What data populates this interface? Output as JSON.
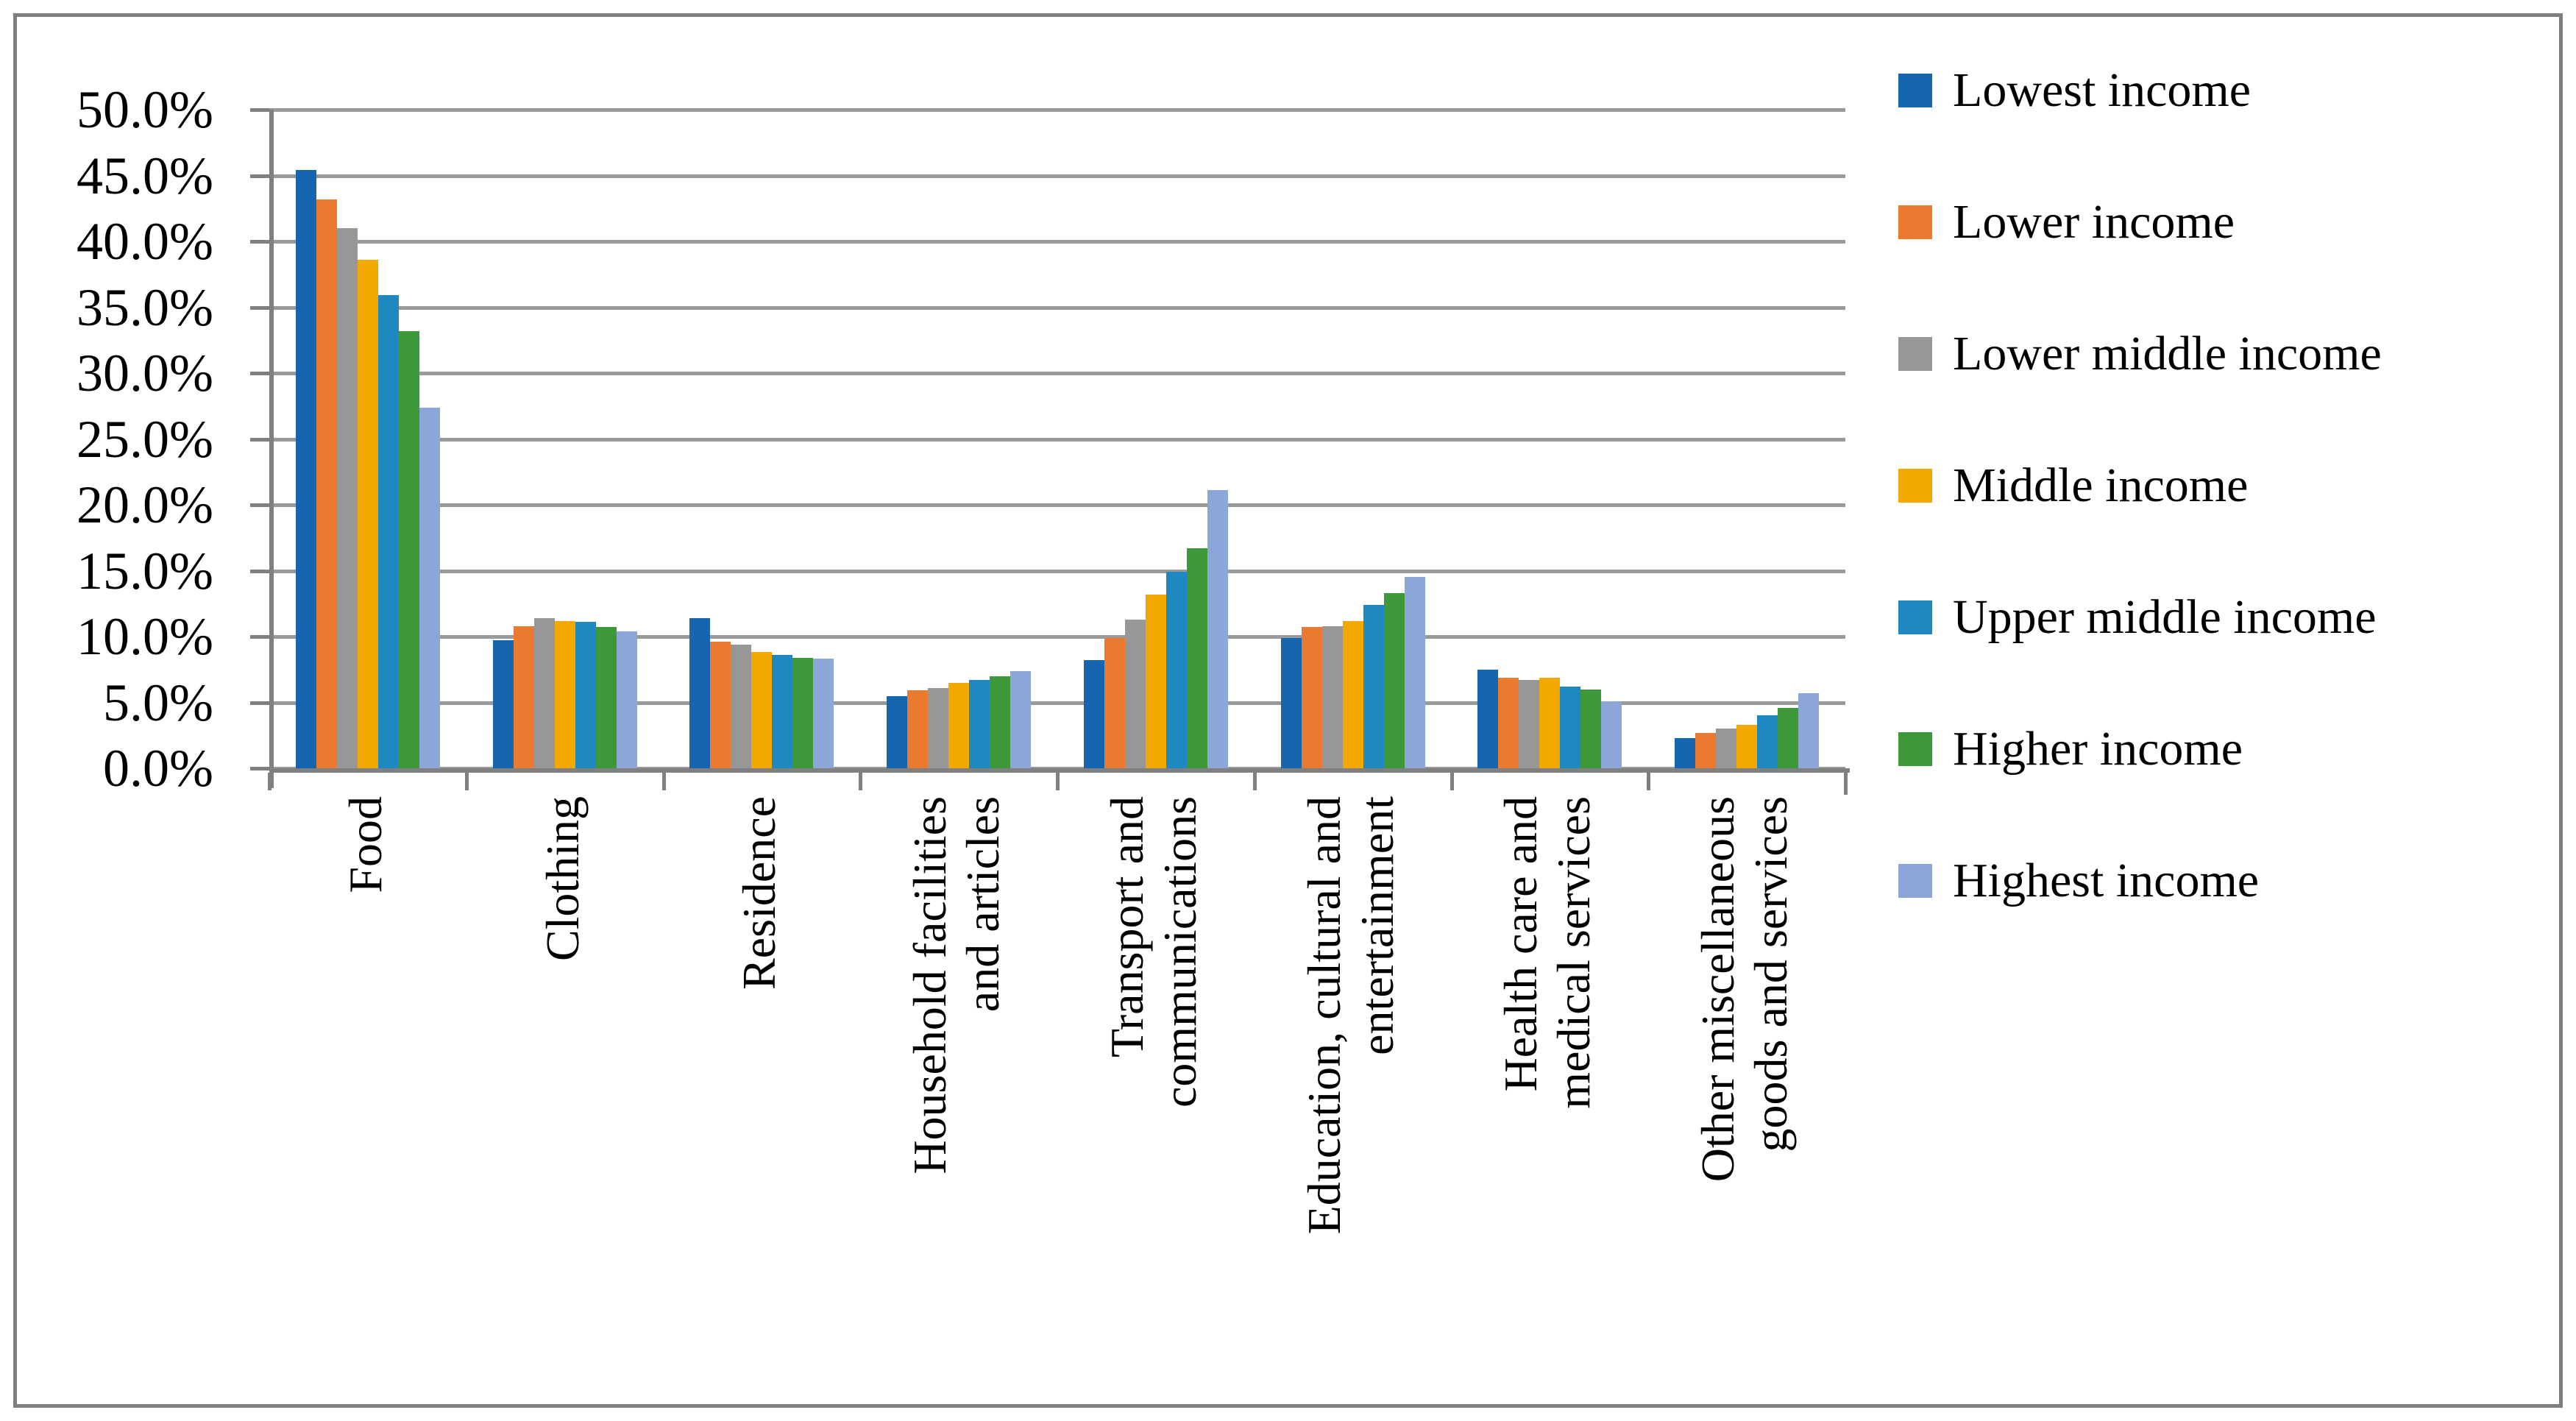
{
  "chart_data": {
    "type": "bar",
    "title": "",
    "xlabel": "",
    "ylabel": "",
    "grid": true,
    "legend_position": "right",
    "background_color": "#ffffff",
    "gridline_color": "#9a9a9a",
    "axis_color": "#808080",
    "border_color": "#7f7f7f",
    "y_axis": {
      "min": 0,
      "max": 50,
      "step": 5,
      "format": "percent_one_decimal",
      "tick_labels": [
        "50.0%",
        "45.0%",
        "40.0%",
        "35.0%",
        "30.0%",
        "25.0%",
        "20.0%",
        "15.0%",
        "10.0%",
        "5.0%",
        "0.0%"
      ]
    },
    "categories": [
      {
        "label_lines": [
          "Food"
        ]
      },
      {
        "label_lines": [
          "Clothing"
        ]
      },
      {
        "label_lines": [
          "Residence"
        ]
      },
      {
        "label_lines": [
          "Household facilities",
          "and articles"
        ]
      },
      {
        "label_lines": [
          "Transport and",
          "communications"
        ]
      },
      {
        "label_lines": [
          "Education, cultural and",
          "entertainment"
        ]
      },
      {
        "label_lines": [
          "Health care and",
          "medical services"
        ]
      },
      {
        "label_lines": [
          "Other miscellaneous",
          "goods and services"
        ]
      }
    ],
    "series": [
      {
        "name": "Lowest income",
        "color": "#1565b0",
        "values": [
          45.4,
          9.7,
          11.4,
          5.5,
          8.2,
          9.9,
          7.5,
          2.3
        ]
      },
      {
        "name": "Lower income",
        "color": "#e97a2f",
        "values": [
          43.2,
          10.8,
          9.6,
          5.9,
          9.9,
          10.7,
          6.9,
          2.7
        ]
      },
      {
        "name": "Lower middle income",
        "color": "#979797",
        "values": [
          41.0,
          11.4,
          9.4,
          6.1,
          11.3,
          10.8,
          6.7,
          3.0
        ]
      },
      {
        "name": "Middle income",
        "color": "#f3a800",
        "values": [
          38.6,
          11.2,
          8.8,
          6.5,
          13.2,
          11.2,
          6.9,
          3.3
        ]
      },
      {
        "name": "Upper middle income",
        "color": "#1e88c0",
        "values": [
          35.9,
          11.1,
          8.6,
          6.7,
          14.9,
          12.4,
          6.2,
          4.0
        ]
      },
      {
        "name": "Higher income",
        "color": "#3c9839",
        "values": [
          33.2,
          10.7,
          8.4,
          7.0,
          16.7,
          13.3,
          6.0,
          4.6
        ]
      },
      {
        "name": "Highest income",
        "color": "#8ca6d8",
        "values": [
          27.4,
          10.4,
          8.3,
          7.4,
          21.1,
          14.5,
          5.1,
          5.7
        ]
      }
    ]
  }
}
